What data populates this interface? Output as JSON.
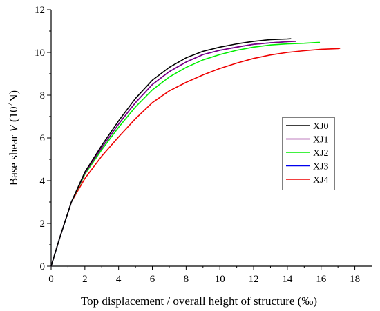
{
  "chart_data": {
    "type": "line",
    "title": "",
    "xlabel": "Top displacement / overall height of structure (‰)",
    "ylabel": {
      "prefix": "Base shear ",
      "italic": "V",
      "unit_open": " (10",
      "unit_sup": "7",
      "unit_close": "N)"
    },
    "xlim": [
      0,
      19
    ],
    "ylim": [
      0,
      12
    ],
    "xticks": [
      0,
      2,
      4,
      6,
      8,
      10,
      12,
      14,
      16,
      18
    ],
    "yticks": [
      0,
      2,
      4,
      6,
      8,
      10,
      12
    ],
    "legend_position": "right",
    "grid": false,
    "series": [
      {
        "name": "XJ0",
        "color": "#000000",
        "x": [
          0,
          0.5,
          1.2,
          2,
          3,
          4,
          5,
          6,
          7,
          8,
          9,
          10,
          11,
          12,
          13,
          14,
          14.2
        ],
        "y": [
          0,
          1.3,
          3.0,
          4.4,
          5.65,
          6.8,
          7.85,
          8.7,
          9.3,
          9.75,
          10.05,
          10.25,
          10.4,
          10.52,
          10.6,
          10.63,
          10.64
        ]
      },
      {
        "name": "XJ1",
        "color": "#800080",
        "x": [
          0,
          0.5,
          1.2,
          2,
          3,
          4,
          5,
          6,
          7,
          8,
          9,
          10,
          11,
          12,
          13,
          14,
          14.5
        ],
        "y": [
          0,
          1.3,
          3.0,
          4.35,
          5.55,
          6.65,
          7.65,
          8.5,
          9.1,
          9.55,
          9.9,
          10.1,
          10.25,
          10.38,
          10.45,
          10.5,
          10.52
        ]
      },
      {
        "name": "XJ2",
        "color": "#00ee00",
        "x": [
          0,
          0.5,
          1.2,
          2,
          3,
          4,
          5,
          6,
          7,
          8,
          9,
          10,
          11,
          12,
          13,
          14,
          15,
          15.9
        ],
        "y": [
          0,
          1.3,
          3.0,
          4.3,
          5.45,
          6.5,
          7.45,
          8.25,
          8.85,
          9.3,
          9.65,
          9.9,
          10.1,
          10.25,
          10.35,
          10.4,
          10.43,
          10.47
        ]
      },
      {
        "name": "XJ3",
        "color": "#0000ee",
        "x": [
          0,
          0.5,
          1.2,
          2,
          3,
          4,
          5,
          6,
          7,
          8,
          9,
          10,
          11,
          12,
          13,
          14
        ],
        "y": [
          0,
          1.3,
          3.0,
          4.35,
          5.55,
          6.65,
          7.65,
          8.5,
          9.1,
          9.55,
          9.9,
          10.1,
          10.25,
          10.38,
          10.45,
          10.5
        ]
      },
      {
        "name": "XJ4",
        "color": "#ee0000",
        "x": [
          0,
          0.5,
          1.2,
          2,
          3,
          4,
          5,
          6,
          7,
          8,
          9,
          10,
          11,
          12,
          13,
          14,
          15,
          16,
          17,
          17.1
        ],
        "y": [
          0,
          1.3,
          3.0,
          4.1,
          5.15,
          6.05,
          6.9,
          7.65,
          8.2,
          8.6,
          8.95,
          9.25,
          9.5,
          9.72,
          9.88,
          10.0,
          10.08,
          10.15,
          10.18,
          10.19
        ]
      }
    ]
  }
}
